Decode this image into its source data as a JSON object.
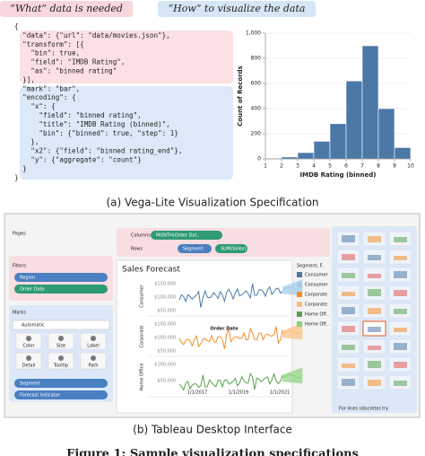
{
  "header": {
    "what": "“What” data is needed",
    "how": "“How” to visualize the data"
  },
  "code": {
    "lines": [
      "{",
      "  \"data\": {\"url\": \"data/movies.json\"},",
      "  \"transform\": [{",
      "    \"bin\": true,",
      "    \"field\": \"IMDB Rating\",",
      "    \"as\": \"binned rating\"",
      "  }],",
      "  \"mark\": \"bar\",",
      "  \"encoding\": {",
      "    \"x\": {",
      "      \"field\": \"binned rating\",",
      "      \"title\": \"IMDB Rating (binned)\",",
      "      \"bin\": {\"binned\": true, \"step\": 1}",
      "    },",
      "    \"x2\": {\"field\": \"binned rating_end\"},",
      "    \"y\": {\"aggregate\": \"count\"}",
      "  }",
      "}"
    ]
  },
  "chart_data": {
    "type": "histogram",
    "xlabel": "IMDB Rating (binned)",
    "ylabel": "Count of Records",
    "bins": [
      1,
      2,
      3,
      4,
      5,
      6,
      7,
      8,
      9,
      10
    ],
    "values": [
      5,
      15,
      50,
      140,
      280,
      620,
      900,
      400,
      90
    ],
    "color": "#4c78a8",
    "xlim": [
      1,
      10
    ],
    "ylim": [
      0,
      1000
    ],
    "xticks": [
      1,
      2,
      3,
      4,
      5,
      6,
      7,
      8,
      9,
      10
    ],
    "yticks": [
      0,
      200,
      400,
      600,
      800,
      {
        "value": 1000,
        "label": "1,000"
      }
    ]
  },
  "captions": {
    "a": "(a) Vega-Lite Visualization Specification",
    "b": "(b) Tableau Desktop Interface",
    "figure": "Figure 1: Sample visualization specifications"
  },
  "tableau": {
    "pages": "Pages",
    "columns": "Columns",
    "rows": "Rows",
    "column_pill": "MONTH(Order Dat..",
    "row_pills": [
      "Segment",
      "SUM(Sales)"
    ],
    "filters": "Filters",
    "filter_pills": [
      "Region",
      "Order Date"
    ],
    "marks": "Marks",
    "mark_type": "Automatic",
    "mark_cards": [
      "Color",
      "Size",
      "Label",
      "Detail",
      "Tooltip",
      "Path"
    ],
    "mark_pills": [
      "Segment",
      "Forecast indicator"
    ],
    "chart_title": "Sales Forecast",
    "panels": [
      {
        "segment": "Consumer",
        "ticks": [
          "$150,000",
          "$100,000",
          "$50,000"
        ]
      },
      {
        "segment": "Corporate",
        "ticks": [
          "$150,000",
          "$100,000",
          "$50,000"
        ]
      },
      {
        "segment": "Home Office",
        "ticks": [
          "$100,000",
          "$50,000"
        ]
      }
    ],
    "order_date": "Order Date",
    "dates": [
      "1/1/2017",
      "1/1/2019",
      "1/1/2021"
    ],
    "legend_title": "Segment, F..",
    "legend": [
      {
        "name": "Consumer",
        "color": "#4e79a7"
      },
      {
        "name": "Consumer",
        "color": "#a0cbe8"
      },
      {
        "name": "Corporate",
        "color": "#f28e2b"
      },
      {
        "name": "Corporate",
        "color": "#ffbe7d"
      },
      {
        "name": "Home Off..",
        "color": "#59a14f"
      },
      {
        "name": "Home Off..",
        "color": "#8cd17d"
      }
    ],
    "show_me_hint": "For lines (discrete) try"
  }
}
